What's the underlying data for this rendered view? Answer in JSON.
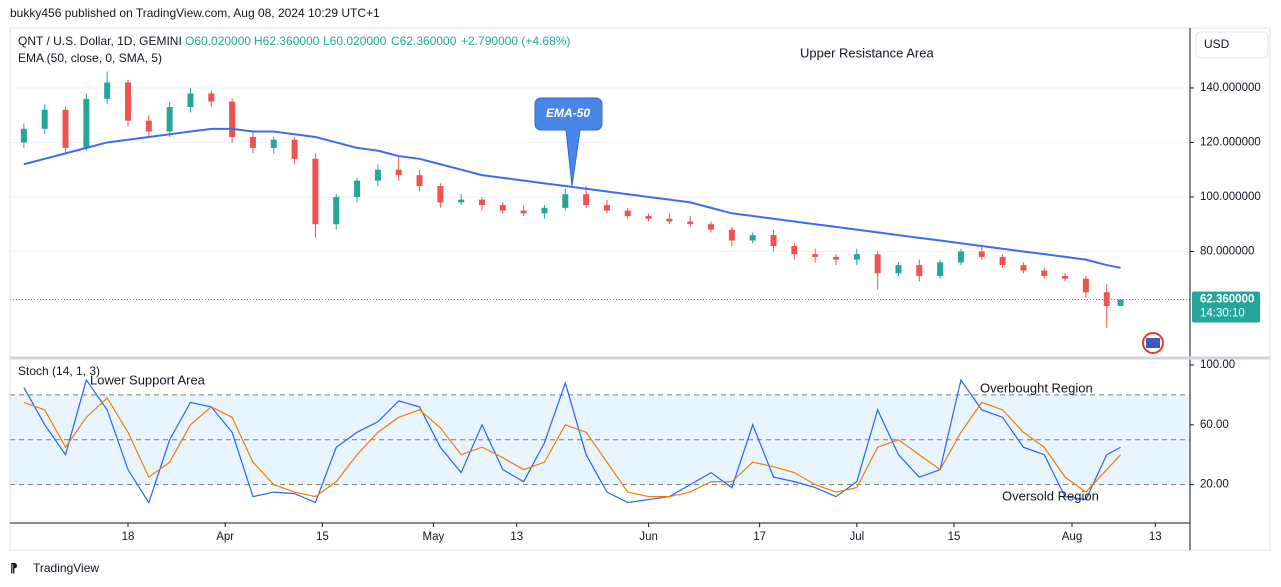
{
  "header": "bukky456 published on TradingView.com, Aug 08, 2024 10:29 UTC+1",
  "footer": "TradingView",
  "chart_data": [
    {
      "type": "candlestick",
      "title": "QNT / U.S. Dollar, 1D, GEMINI",
      "legend_values": [
        "O60.020000",
        "H62.360000",
        "L60.020000",
        "C62.360000",
        "+2.790000 (+4.68%)"
      ],
      "indicator": "EMA (50, close, 0, SMA, 5)",
      "annotations": [
        "Upper Resistance Area",
        "EMA-50"
      ],
      "currency": "USD",
      "last_price": {
        "value": 62.36,
        "label": "62.360000"
      },
      "countdown": "14:30:10",
      "up_color": "#26a69a",
      "down_color": "#ef5350",
      "x": [
        "2024-03-03",
        "2024-03-06",
        "2024-03-09",
        "2024-03-12",
        "2024-03-15",
        "2024-03-18",
        "2024-03-21",
        "2024-03-24",
        "2024-03-27",
        "2024-03-30",
        "2024-04-02",
        "2024-04-05",
        "2024-04-08",
        "2024-04-11",
        "2024-04-14",
        "2024-04-17",
        "2024-04-20",
        "2024-04-23",
        "2024-04-26",
        "2024-04-29",
        "2024-05-02",
        "2024-05-05",
        "2024-05-08",
        "2024-05-11",
        "2024-05-14",
        "2024-05-17",
        "2024-05-20",
        "2024-05-23",
        "2024-05-26",
        "2024-05-29",
        "2024-06-01",
        "2024-06-04",
        "2024-06-07",
        "2024-06-10",
        "2024-06-13",
        "2024-06-16",
        "2024-06-19",
        "2024-06-22",
        "2024-06-25",
        "2024-06-28",
        "2024-07-01",
        "2024-07-04",
        "2024-07-07",
        "2024-07-10",
        "2024-07-13",
        "2024-07-16",
        "2024-07-19",
        "2024-07-22",
        "2024-07-25",
        "2024-07-28",
        "2024-07-31",
        "2024-08-03",
        "2024-08-06",
        "2024-08-08"
      ],
      "open": [
        120,
        125,
        132,
        118,
        136,
        142,
        128,
        124,
        133,
        138,
        135,
        122,
        118,
        121,
        114,
        90,
        100,
        106,
        110,
        108,
        104,
        98,
        99,
        97,
        95,
        94,
        96,
        101,
        97,
        95,
        93,
        92,
        91,
        90,
        88,
        84,
        86,
        82,
        79,
        78,
        77,
        79,
        72,
        75,
        71,
        76,
        80,
        78,
        75,
        73,
        71,
        70,
        65,
        60.02
      ],
      "high": [
        127,
        134,
        133,
        138,
        146,
        143,
        130,
        135,
        140,
        139,
        136,
        124,
        122,
        122,
        116,
        101,
        107,
        112,
        115,
        110,
        105,
        101,
        100,
        98,
        97,
        97,
        103,
        104,
        99,
        96,
        94,
        94,
        93,
        91,
        89,
        87,
        88,
        83,
        81,
        79,
        81,
        80,
        76,
        77,
        77,
        81,
        82,
        79,
        76,
        74,
        72,
        71,
        68,
        62.36
      ],
      "low": [
        118,
        123,
        116,
        117,
        134,
        126,
        122,
        122,
        131,
        133,
        120,
        116,
        116,
        112,
        85,
        88,
        98,
        104,
        106,
        102,
        96,
        97,
        95,
        94,
        93,
        92,
        95,
        96,
        94,
        92,
        91,
        90,
        89,
        87,
        82,
        83,
        80,
        77,
        76,
        75,
        75,
        66,
        71,
        69,
        70,
        75,
        77,
        74,
        72,
        70,
        69,
        63,
        52,
        60.02
      ],
      "close": [
        125,
        132,
        118,
        136,
        142,
        128,
        124,
        133,
        138,
        135,
        122,
        118,
        121,
        114,
        90,
        100,
        106,
        110,
        108,
        104,
        98,
        99,
        97,
        95,
        94,
        96,
        101,
        97,
        95,
        93,
        92,
        91,
        90,
        88,
        84,
        86,
        82,
        79,
        78,
        77,
        79,
        72,
        75,
        71,
        76,
        80,
        78,
        75,
        73,
        71,
        70,
        65,
        60,
        62.36
      ],
      "series": [
        {
          "name": "EMA",
          "color": "#3d6ee8",
          "values": [
            112,
            114,
            116,
            118,
            120,
            121,
            122,
            123,
            124,
            125,
            125,
            124,
            124,
            123,
            122,
            120,
            118,
            117,
            115,
            114,
            112,
            110,
            108,
            107,
            106,
            105,
            104,
            103,
            102,
            101,
            100,
            99,
            98,
            96,
            94,
            93,
            92,
            91,
            90,
            89,
            88,
            87,
            86,
            85,
            84,
            83,
            82,
            81,
            80,
            79,
            78,
            77,
            75,
            74
          ]
        }
      ],
      "xlim": [
        "2024-03-01",
        "2024-08-18"
      ],
      "ylim": [
        42,
        162
      ],
      "yticks": [
        {
          "value": 80,
          "label": "80.000000"
        },
        {
          "value": 100,
          "label": "100.000000"
        },
        {
          "value": 120,
          "label": "120.000000"
        },
        {
          "value": 140,
          "label": "140.000000"
        }
      ],
      "grid": true
    },
    {
      "type": "line",
      "title": "Stoch (14, 1, 3)",
      "annotations": [
        "Lower Support Area",
        "Overbought Region",
        "Oversold Region"
      ],
      "x": [
        "2024-03-03",
        "2024-03-06",
        "2024-03-09",
        "2024-03-12",
        "2024-03-15",
        "2024-03-18",
        "2024-03-21",
        "2024-03-24",
        "2024-03-27",
        "2024-03-30",
        "2024-04-02",
        "2024-04-05",
        "2024-04-08",
        "2024-04-11",
        "2024-04-14",
        "2024-04-17",
        "2024-04-20",
        "2024-04-23",
        "2024-04-26",
        "2024-04-29",
        "2024-05-02",
        "2024-05-05",
        "2024-05-08",
        "2024-05-11",
        "2024-05-14",
        "2024-05-17",
        "2024-05-20",
        "2024-05-23",
        "2024-05-26",
        "2024-05-29",
        "2024-06-01",
        "2024-06-04",
        "2024-06-07",
        "2024-06-10",
        "2024-06-13",
        "2024-06-16",
        "2024-06-19",
        "2024-06-22",
        "2024-06-25",
        "2024-06-28",
        "2024-07-01",
        "2024-07-04",
        "2024-07-07",
        "2024-07-10",
        "2024-07-13",
        "2024-07-16",
        "2024-07-19",
        "2024-07-22",
        "2024-07-25",
        "2024-07-28",
        "2024-07-31",
        "2024-08-03",
        "2024-08-06",
        "2024-08-08"
      ],
      "series": [
        {
          "name": "%K",
          "color": "#2962ff",
          "values": [
            85,
            60,
            40,
            90,
            70,
            30,
            8,
            50,
            75,
            72,
            55,
            12,
            15,
            14,
            8,
            45,
            55,
            62,
            76,
            72,
            45,
            28,
            60,
            30,
            22,
            48,
            88,
            40,
            15,
            8,
            10,
            12,
            20,
            28,
            18,
            60,
            25,
            22,
            18,
            12,
            22,
            70,
            40,
            25,
            30,
            90,
            70,
            65,
            45,
            40,
            12,
            10,
            40,
            45
          ]
        },
        {
          "name": "%D",
          "color": "#f57c00",
          "values": [
            75,
            70,
            45,
            65,
            78,
            55,
            25,
            35,
            60,
            72,
            65,
            35,
            20,
            15,
            12,
            22,
            40,
            55,
            65,
            70,
            58,
            40,
            45,
            38,
            30,
            35,
            60,
            55,
            35,
            15,
            12,
            12,
            15,
            22,
            22,
            35,
            32,
            28,
            20,
            15,
            18,
            45,
            50,
            40,
            30,
            55,
            75,
            70,
            55,
            45,
            25,
            15,
            30,
            40
          ]
        }
      ],
      "levels": [
        20,
        50,
        80
      ],
      "xlim": [
        "2024-03-01",
        "2024-08-18"
      ],
      "ylim": [
        -5,
        100
      ],
      "yticks": [
        {
          "value": 20,
          "label": "20.00"
        },
        {
          "value": 60,
          "label": "60.00"
        },
        {
          "value": 100,
          "label": "100.00"
        }
      ],
      "xticks": [
        {
          "value": "2024-03-18",
          "label": "18"
        },
        {
          "value": "2024-04-01",
          "label": "Apr"
        },
        {
          "value": "2024-04-15",
          "label": "15"
        },
        {
          "value": "2024-05-01",
          "label": "May"
        },
        {
          "value": "2024-05-13",
          "label": "13"
        },
        {
          "value": "2024-06-01",
          "label": "Jun"
        },
        {
          "value": "2024-06-17",
          "label": "17"
        },
        {
          "value": "2024-07-01",
          "label": "Jul"
        },
        {
          "value": "2024-07-15",
          "label": "15"
        },
        {
          "value": "2024-08-01",
          "label": "Aug"
        },
        {
          "value": "2024-08-13",
          "label": "13"
        }
      ]
    }
  ]
}
